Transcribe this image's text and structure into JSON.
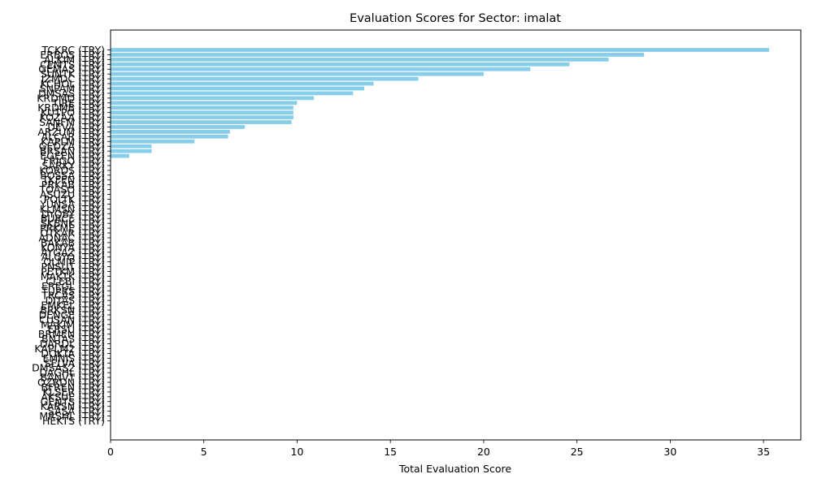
{
  "chart_data": {
    "type": "bar",
    "orientation": "horizontal",
    "title": "Evaluation Scores for Sector: imalat",
    "xlabel": "Total Evaluation Score",
    "ylabel": "",
    "xlim": [
      0,
      37
    ],
    "xticks": [
      0,
      5,
      10,
      15,
      20,
      25,
      30,
      35
    ],
    "grid": false,
    "bar_color": "#87ceeb",
    "categories": [
      "TCKRC (TRY)",
      "ERBOS (TRY)",
      "ALKIM (TRY)",
      "CEMTS (TRY)",
      "GEMAS (TRY)",
      "SUNTK (TRY)",
      "IZMDC (TRY)",
      "KCHOL (TRY)",
      "SNPAM (TRY)",
      "DMSAS (TRY)",
      "KRDMD (TRY)",
      "TIRE (TRY)",
      "KRDMB (TRY)",
      "KUTPO (TRY)",
      "KOZAA (TRY)",
      "SANFM (TRY)",
      "DEVA (TRY)",
      "ARZUM (TRY)",
      "ALCAR (TRY)",
      "KAPLM (TRY)",
      "GEDZA (TRY)",
      "BRSAN (TRY)",
      "EGEEN (TRY)",
      "FRIGO (TRY)",
      "SARKY (TRY)",
      "KORDS (TRY)",
      "BOSSA (TRY)",
      "TKFEN (TRY)",
      "PRKAB (TRY)",
      "TOASO (TRY)",
      "ASUZU (TRY)",
      "POLTK (TRY)",
      "YUNSA (TRY)",
      "KLMSN (TRY)",
      "DYOBY (TRY)",
      "BURCE (TRY)",
      "SKBNK (TRY)",
      "PRKME (TRY)",
      "OTKAR (TRY)",
      "ADNAC (TRY)",
      "BAKAB (TRY)",
      "KONYA (TRY)",
      "AYGAZ (TRY)",
      "ALGYO (TRY)",
      "OLMIP (TRY)",
      "PNSUT (TRY)",
      "PETKM (TRY)",
      "MAKTK (TRY)",
      "CLEBI (TRY)",
      "EREGL (TRY)",
      "TUPRS (TRY)",
      "TRCAS (TRY)",
      "DITAS (TRY)",
      "EMKEL (TRY)",
      "BRKSN (TRY)",
      "DENGE (TRY)",
      "CUSAN (TRY)",
      "MAKIM (TRY)",
      "ERSU (TRY)",
      "BRMEN (TRY)",
      "BNTAS (TRY)",
      "DARDL (TRY)",
      "KAPLM2 (TRY)",
      "DOKTA (TRY)",
      "EMNIS (TRY)",
      "SELVA (TRY)",
      "DMSAS2 (TRY)",
      "DAGHL (TRY)",
      "BANVT (TRY)",
      "OZRDN (TRY)",
      "BFREN (TRY)",
      "KLSER (TRY)",
      "AKSUE (TRY)",
      "GENTS (TRY)",
      "KARSN (TRY)",
      "SASA (TRY)",
      "MRSHL (TRY)",
      "HEKTS (TRY)"
    ],
    "values": [
      35.3,
      28.6,
      26.7,
      24.6,
      22.5,
      20.0,
      16.5,
      14.1,
      13.6,
      13.0,
      10.9,
      10.0,
      9.8,
      9.8,
      9.8,
      9.7,
      7.2,
      6.4,
      6.3,
      4.5,
      2.2,
      2.2,
      1.0,
      0,
      0,
      0,
      0,
      0,
      0,
      0,
      0,
      0,
      0,
      0,
      0,
      0,
      0,
      0,
      0,
      0,
      0,
      0,
      0,
      0,
      0,
      0,
      0,
      0,
      0,
      0,
      0,
      0,
      0,
      0,
      0,
      0,
      0,
      0,
      0,
      0,
      0,
      0,
      0,
      0,
      0,
      0,
      0,
      0,
      0,
      0,
      0,
      0,
      0,
      0,
      0,
      0,
      0,
      0
    ]
  }
}
